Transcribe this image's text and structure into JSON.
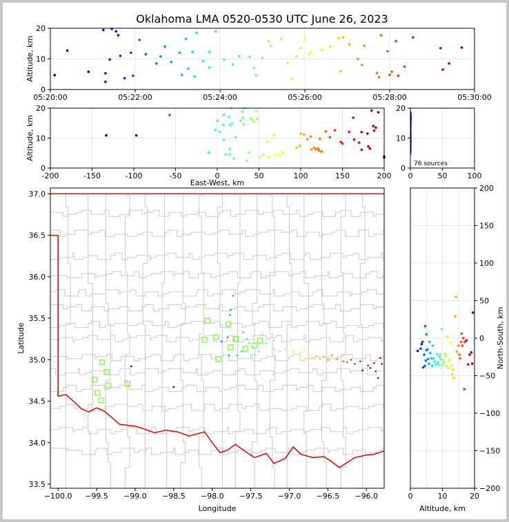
{
  "title": "Oklahoma LMA 0520-0530 UTC June 26, 2023",
  "colors": {
    "state_border": "#e00000",
    "county_lines": "#c8c8c8",
    "station": "#80ff40"
  },
  "chart_data": [
    {
      "id": "alt-time",
      "type": "scatter",
      "ylabel": "Altitude, km",
      "xlim_minutes": [
        0,
        10
      ],
      "ylim": [
        0,
        20
      ],
      "xticks": [
        {
          "v": 0,
          "label": "05:20:00"
        },
        {
          "v": 2,
          "label": "05:22:00"
        },
        {
          "v": 4,
          "label": "05:24:00"
        },
        {
          "v": 6,
          "label": "05:26:00"
        },
        {
          "v": 8,
          "label": "05:28:00"
        },
        {
          "v": 10,
          "label": "05:30:00"
        }
      ],
      "yticks": [
        0,
        10,
        20
      ],
      "points": [
        [
          0.1,
          4.7
        ],
        [
          0.4,
          12.7
        ],
        [
          0.9,
          5.8
        ],
        [
          1.25,
          19.4
        ],
        [
          1.3,
          5.3
        ],
        [
          1.3,
          2.5
        ],
        [
          1.4,
          9.8
        ],
        [
          1.45,
          19.8
        ],
        [
          1.55,
          19
        ],
        [
          1.6,
          17.7
        ],
        [
          1.65,
          11
        ],
        [
          1.75,
          3.7
        ],
        [
          1.9,
          12
        ],
        [
          1.95,
          4.5
        ],
        [
          2.1,
          16.2
        ],
        [
          2.25,
          11.5
        ],
        [
          2.5,
          8.5
        ],
        [
          2.6,
          10.8
        ],
        [
          2.7,
          14
        ],
        [
          2.85,
          9
        ],
        [
          3.05,
          12
        ],
        [
          3.1,
          4.8
        ],
        [
          3.2,
          16.5
        ],
        [
          3.25,
          6.8
        ],
        [
          3.35,
          12.3
        ],
        [
          3.4,
          4.3
        ],
        [
          3.45,
          18.5
        ],
        [
          3.6,
          9.3
        ],
        [
          3.75,
          12.3
        ],
        [
          3.75,
          7.2
        ],
        [
          3.9,
          19
        ],
        [
          4.1,
          9.8
        ],
        [
          4.3,
          8.2
        ],
        [
          4.45,
          10.9
        ],
        [
          4.7,
          10.7
        ],
        [
          4.8,
          7
        ],
        [
          4.85,
          4.6
        ],
        [
          5.0,
          10.3
        ],
        [
          5.15,
          15.7
        ],
        [
          5.2,
          14.2
        ],
        [
          5.45,
          16.5
        ],
        [
          5.6,
          8.6
        ],
        [
          5.7,
          3.5
        ],
        [
          5.8,
          10.8
        ],
        [
          5.9,
          13.6
        ],
        [
          6.0,
          16.2
        ],
        [
          6.1,
          11.5
        ],
        [
          6.15,
          12.2
        ],
        [
          6.4,
          13
        ],
        [
          6.6,
          14
        ],
        [
          6.8,
          16.7
        ],
        [
          6.85,
          6
        ],
        [
          6.9,
          17
        ],
        [
          7.05,
          14.7
        ],
        [
          7.25,
          10
        ],
        [
          7.35,
          8
        ],
        [
          7.4,
          14.3
        ],
        [
          7.7,
          5.4
        ],
        [
          7.75,
          4
        ],
        [
          7.8,
          17.7
        ],
        [
          7.95,
          12.5
        ],
        [
          8.0,
          4.8
        ],
        [
          8.05,
          5.8
        ],
        [
          8.15,
          15.8
        ],
        [
          8.2,
          4.5
        ],
        [
          8.35,
          7.5
        ],
        [
          8.55,
          17
        ],
        [
          9.2,
          13.5
        ],
        [
          9.25,
          6.5
        ],
        [
          9.4,
          8.5
        ],
        [
          9.7,
          13.7
        ]
      ]
    },
    {
      "id": "alt-ew",
      "type": "scatter",
      "xlabel": "East-West, km",
      "ylabel": "Altitude, km",
      "xlim": [
        -200,
        200
      ],
      "ylim": [
        0,
        20
      ],
      "xticks": [
        -200,
        -150,
        -100,
        -50,
        0,
        50,
        100,
        150,
        200
      ],
      "yticks": [
        0,
        10,
        20
      ],
      "points": [
        [
          -133,
          10.9
        ],
        [
          -97,
          10.9
        ],
        [
          -57,
          17.7
        ],
        [
          -10,
          5.2
        ],
        [
          -2,
          12.7
        ],
        [
          0,
          15.8
        ],
        [
          3,
          12.1
        ],
        [
          7,
          14.4
        ],
        [
          8,
          9.4
        ],
        [
          8,
          17.7
        ],
        [
          10,
          4.5
        ],
        [
          14,
          17.1
        ],
        [
          15,
          4.5
        ],
        [
          15,
          6.3
        ],
        [
          15,
          14.4
        ],
        [
          17,
          20
        ],
        [
          18,
          14.9
        ],
        [
          20,
          3.2
        ],
        [
          22,
          10.3
        ],
        [
          28,
          15.8
        ],
        [
          30,
          18.8
        ],
        [
          31,
          16.7
        ],
        [
          32,
          14.6
        ],
        [
          32,
          20
        ],
        [
          35,
          2.5
        ],
        [
          38,
          5.2
        ],
        [
          40,
          16.5
        ],
        [
          42,
          16.2
        ],
        [
          44,
          15.5
        ],
        [
          47,
          19
        ],
        [
          48,
          16.5
        ],
        [
          51,
          3.6
        ],
        [
          55,
          4.4
        ],
        [
          60,
          8.8
        ],
        [
          62,
          3.6
        ],
        [
          68,
          10.9
        ],
        [
          70,
          4.3
        ],
        [
          75,
          4.3
        ],
        [
          78,
          5.2
        ],
        [
          95,
          6.8
        ],
        [
          99,
          7.4
        ],
        [
          100,
          11.5
        ],
        [
          104,
          11.2
        ],
        [
          108,
          9.6
        ],
        [
          112,
          10.5
        ],
        [
          113,
          6.2
        ],
        [
          116,
          6.8
        ],
        [
          118,
          6.3
        ],
        [
          121,
          6.5
        ],
        [
          122,
          5.8
        ],
        [
          123,
          9.8
        ],
        [
          125,
          5.5
        ],
        [
          130,
          12.2
        ],
        [
          135,
          10.3
        ],
        [
          141,
          12.6
        ],
        [
          148,
          8.7
        ],
        [
          150,
          8.2
        ],
        [
          158,
          12.1
        ],
        [
          163,
          16.8
        ],
        [
          164,
          9.5
        ],
        [
          170,
          8.5
        ],
        [
          173,
          12
        ],
        [
          173,
          6.1
        ],
        [
          180,
          11.5
        ],
        [
          181,
          7.2
        ],
        [
          183,
          6.5
        ],
        [
          185,
          19.2
        ],
        [
          187,
          14
        ],
        [
          188,
          12.5
        ],
        [
          190,
          13.5
        ],
        [
          193,
          18.6
        ],
        [
          200,
          3.8
        ],
        [
          200,
          3.5
        ]
      ]
    },
    {
      "id": "alt-histogram",
      "type": "line",
      "xlim": [
        0,
        100
      ],
      "ylim": [
        0,
        20
      ],
      "xticks": [
        0,
        50,
        100
      ],
      "yticks": [
        0,
        10,
        20
      ],
      "annotation": "76 sources",
      "points": [
        [
          0.5,
          4.5
        ],
        [
          0.8,
          6
        ],
        [
          1,
          8.5
        ],
        [
          1,
          11
        ],
        [
          0.8,
          12.5
        ],
        [
          1,
          14
        ],
        [
          1.2,
          16.5
        ],
        [
          1.5,
          17
        ],
        [
          1,
          18
        ],
        [
          0.5,
          19
        ]
      ]
    },
    {
      "id": "plan-view",
      "type": "scatter",
      "xlabel": "Longitude",
      "ylabel": "Latitude",
      "xlim": [
        -100.1,
        -95.77
      ],
      "ylim": [
        33.45,
        37.07
      ],
      "xticks": [
        -100,
        -99.5,
        -99,
        -98.5,
        -98,
        -97.5,
        -97,
        -96.5,
        -96
      ],
      "xtick_labels": [
        "−100.0",
        "−99.5",
        "−99.0",
        "−98.5",
        "−98.0",
        "−97.5",
        "−97.0",
        "−96.5",
        "−96.0"
      ],
      "yticks": [
        33.5,
        34.0,
        34.5,
        35.0,
        35.5,
        36.0,
        36.5,
        37.0
      ],
      "stations": [
        [
          -99.43,
          34.97
        ],
        [
          -99.37,
          34.85
        ],
        [
          -99.53,
          34.76
        ],
        [
          -99.35,
          34.69
        ],
        [
          -99.49,
          34.6
        ],
        [
          -99.44,
          34.51
        ],
        [
          -99.1,
          34.71
        ],
        [
          -98.06,
          35.47
        ],
        [
          -97.95,
          35.27
        ],
        [
          -98.1,
          35.24
        ],
        [
          -97.92,
          35.01
        ],
        [
          -97.79,
          35.43
        ],
        [
          -97.76,
          35.15
        ],
        [
          -97.69,
          35.25
        ],
        [
          -97.57,
          35.13
        ],
        [
          -97.45,
          35.17
        ],
        [
          -97.38,
          35.23
        ]
      ],
      "points": [
        [
          -97.73,
          35.77
        ],
        [
          -97.76,
          35.6
        ],
        [
          -97.77,
          35.54
        ],
        [
          -98.5,
          34.67
        ],
        [
          -99.05,
          34.92
        ],
        [
          -97.88,
          35.22
        ],
        [
          -97.8,
          35.27
        ],
        [
          -97.72,
          35.24
        ],
        [
          -97.6,
          35.33
        ],
        [
          -97.55,
          35.25
        ],
        [
          -97.48,
          35.15
        ],
        [
          -97.45,
          35.06
        ],
        [
          -97.4,
          35.1
        ],
        [
          -97.35,
          35.3
        ],
        [
          -97.3,
          35.2
        ],
        [
          -97.2,
          35.13
        ],
        [
          -97.12,
          35.1
        ],
        [
          -97.05,
          35.13
        ],
        [
          -96.95,
          35.1
        ],
        [
          -96.85,
          35.09
        ],
        [
          -96.8,
          35.12
        ],
        [
          -96.75,
          35.05
        ],
        [
          -96.7,
          35.02
        ],
        [
          -96.65,
          35.04
        ],
        [
          -96.6,
          35.01
        ],
        [
          -96.55,
          35.03
        ],
        [
          -96.5,
          35.0
        ],
        [
          -96.45,
          35.05
        ],
        [
          -96.38,
          35.01
        ],
        [
          -96.3,
          34.98
        ],
        [
          -96.25,
          34.97
        ],
        [
          -96.2,
          35.0
        ],
        [
          -96.15,
          34.95
        ],
        [
          -96.08,
          34.98
        ],
        [
          -96.05,
          34.87
        ],
        [
          -95.98,
          34.93
        ],
        [
          -95.95,
          34.9
        ],
        [
          -95.9,
          34.96
        ],
        [
          -95.88,
          34.86
        ],
        [
          -95.85,
          34.78
        ],
        [
          -95.82,
          35.02
        ],
        [
          -95.8,
          34.95
        ],
        [
          -97.62,
          35.1
        ],
        [
          -97.52,
          35.2
        ],
        [
          -97.78,
          35.05
        ],
        [
          -97.68,
          35.05
        ],
        [
          -97.2,
          35.23
        ]
      ]
    },
    {
      "id": "alt-ns",
      "type": "scatter",
      "xlabel": "Altitude, km",
      "ylabel": "North-South, km",
      "xlim": [
        0,
        20
      ],
      "ylim": [
        -200,
        200
      ],
      "xticks": [
        0,
        5,
        10,
        15,
        20
      ],
      "yticks": [
        -200,
        -150,
        -100,
        -50,
        0,
        50,
        100,
        150,
        200
      ],
      "points": [
        [
          2.3,
          -17
        ],
        [
          3.2,
          -14
        ],
        [
          3.5,
          -8
        ],
        [
          3.8,
          -5
        ],
        [
          4,
          -39
        ],
        [
          4.3,
          -22
        ],
        [
          4.5,
          -37
        ],
        [
          4.6,
          16
        ],
        [
          4.8,
          -30
        ],
        [
          5,
          5
        ],
        [
          5,
          -16
        ],
        [
          5.3,
          -15
        ],
        [
          5.5,
          -28
        ],
        [
          5.8,
          -34
        ],
        [
          6,
          -5
        ],
        [
          6.2,
          -20
        ],
        [
          6.5,
          -27
        ],
        [
          6.8,
          -37
        ],
        [
          7,
          -10
        ],
        [
          7.2,
          -27
        ],
        [
          7.5,
          -31
        ],
        [
          8,
          -35
        ],
        [
          8.3,
          -21
        ],
        [
          8.6,
          -32
        ],
        [
          8.8,
          -35
        ],
        [
          9,
          -25
        ],
        [
          9.3,
          -22
        ],
        [
          9.5,
          -28
        ],
        [
          9.8,
          12
        ],
        [
          10,
          -36
        ],
        [
          10.3,
          -30
        ],
        [
          10.5,
          -33
        ],
        [
          10.8,
          -21
        ],
        [
          11,
          -24
        ],
        [
          11.3,
          -37
        ],
        [
          11.5,
          2
        ],
        [
          11.8,
          -40
        ],
        [
          12,
          -30
        ],
        [
          12.2,
          -28
        ],
        [
          12.5,
          -6
        ],
        [
          12.8,
          -37
        ],
        [
          13,
          -48
        ],
        [
          13.3,
          -42
        ],
        [
          13.5,
          -53
        ],
        [
          14,
          29
        ],
        [
          14.2,
          55
        ],
        [
          14.5,
          -18
        ],
        [
          15,
          -10
        ],
        [
          15.3,
          -22
        ],
        [
          15.5,
          -27
        ],
        [
          15.8,
          -5
        ],
        [
          16,
          6
        ],
        [
          16.2,
          -10
        ],
        [
          16.5,
          0
        ],
        [
          16.8,
          -68
        ],
        [
          17,
          -5
        ],
        [
          17.5,
          -3
        ],
        [
          18,
          -35
        ],
        [
          18.5,
          -22
        ],
        [
          19,
          -19
        ],
        [
          19.3,
          -34
        ],
        [
          19.5,
          34
        ]
      ]
    }
  ]
}
